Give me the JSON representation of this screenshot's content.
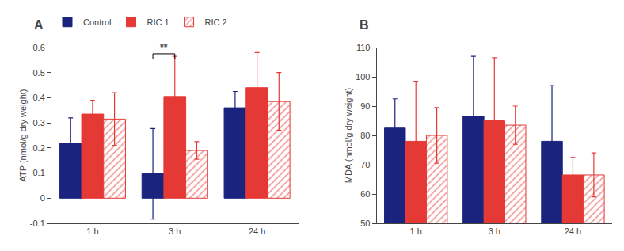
{
  "chart_data": [
    {
      "type": "bar",
      "title": "A",
      "ylabel": "ATP (nmol/g dry weight)",
      "categories": [
        "1 h",
        "3 h",
        "24 h"
      ],
      "series": [
        {
          "name": "Control",
          "color": "#1a237e",
          "values": [
            0.22,
            0.097,
            0.36
          ],
          "errors": [
            0.1,
            0.18,
            0.065
          ]
        },
        {
          "name": "RIC 1",
          "color": "#e53935",
          "values": [
            0.335,
            0.405,
            0.44
          ],
          "errors": [
            0.055,
            0.16,
            0.14
          ]
        },
        {
          "name": "RIC 2",
          "color": "#e53935",
          "marker": "hatch",
          "values": [
            0.315,
            0.19,
            0.385
          ],
          "errors": [
            0.105,
            0.035,
            0.115
          ]
        }
      ],
      "ylim": [
        -0.1,
        0.6
      ],
      "yticks": [
        -0.1,
        0.0,
        0.1,
        0.2,
        0.3,
        0.4,
        0.5,
        0.6
      ],
      "grid": false,
      "legend": "upper left",
      "annotations": [
        {
          "text": "**",
          "x": 1,
          "between": [
            "Control",
            "RIC 1"
          ],
          "y": 0.585,
          "bracket": 0.575
        }
      ]
    },
    {
      "type": "bar",
      "title": "B",
      "ylabel": "MDA (nmol/g dry weight)",
      "categories": [
        "1 h",
        "3 h",
        "24 h"
      ],
      "series": [
        {
          "name": "Control",
          "color": "#1a237e",
          "values": [
            82.5,
            86.5,
            78.0
          ],
          "errors": [
            10.0,
            20.5,
            19.0
          ]
        },
        {
          "name": "RIC 1",
          "color": "#e53935",
          "values": [
            78.0,
            85.0,
            66.5
          ],
          "errors": [
            20.5,
            21.5,
            6.0
          ]
        },
        {
          "name": "RIC 2",
          "color": "#e53935",
          "marker": "hatch",
          "values": [
            80.0,
            83.5,
            66.5
          ],
          "errors": [
            9.5,
            6.5,
            7.5
          ]
        }
      ],
      "ylim": [
        50,
        110
      ],
      "yticks": [
        50,
        60,
        70,
        80,
        90,
        100,
        110
      ],
      "grid": false
    }
  ]
}
